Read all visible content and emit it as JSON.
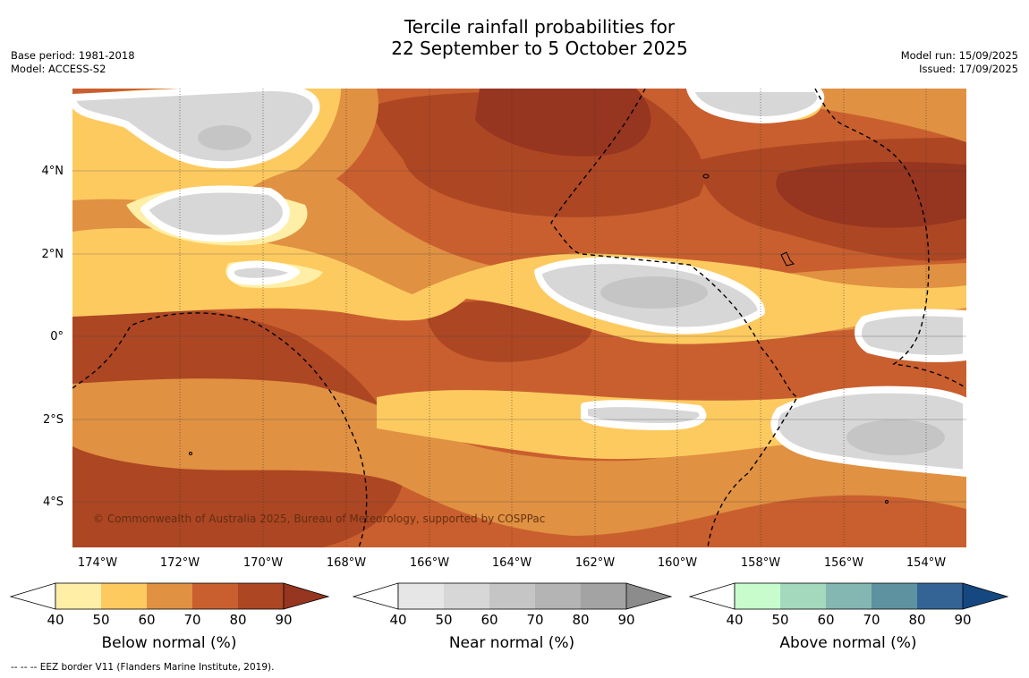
{
  "title": {
    "line1": "Tercile rainfall probabilities for",
    "line2": "22 September to 5 October 2025"
  },
  "meta": {
    "base_period": "Base period: 1981-2018",
    "model": "Model: ACCESS-S2",
    "model_run": "Model run: 15/09/2025",
    "issued": "Issued: 17/09/2025"
  },
  "map": {
    "lat_labels": [
      "4°N",
      "2°N",
      "0°",
      "2°S",
      "4°S"
    ],
    "lon_labels": [
      "174°W",
      "172°W",
      "170°W",
      "168°W",
      "166°W",
      "164°W",
      "162°W",
      "160°W",
      "158°W",
      "156°W",
      "154°W"
    ],
    "copyright": "© Commonwealth of Australia 2025, Bureau of Meteorology, supported by COSPPac"
  },
  "legend": {
    "ticks": [
      "40",
      "50",
      "60",
      "70",
      "80",
      "90"
    ],
    "below": {
      "label": "Below normal (%)",
      "colors": [
        "#ffefa6",
        "#fdca60",
        "#e09142",
        "#c95f2e",
        "#ad4623",
        "#963520"
      ]
    },
    "near": {
      "label": "Near normal (%)",
      "colors": [
        "#e6e6e6",
        "#d7d7d7",
        "#c5c5c5",
        "#b4b4b4",
        "#a3a3a3",
        "#8c8c8c"
      ]
    },
    "above": {
      "label": "Above normal (%)",
      "colors": [
        "#c8fccc",
        "#a4d9bd",
        "#84b7b1",
        "#5f92a0",
        "#346496",
        "#154880"
      ]
    }
  },
  "footnote": "--  --  -- EEZ border V11 (Flanders Marine Institute, 2019)."
}
